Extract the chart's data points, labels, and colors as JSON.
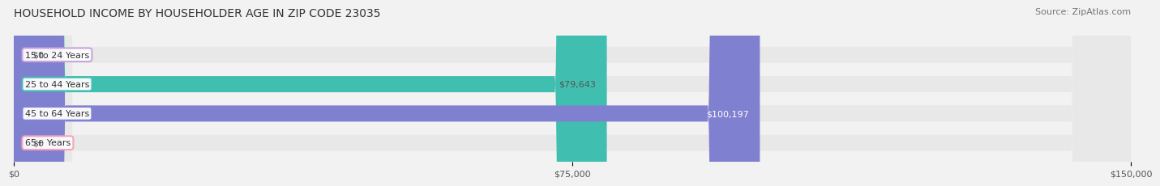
{
  "title": "HOUSEHOLD INCOME BY HOUSEHOLDER AGE IN ZIP CODE 23035",
  "source": "Source: ZipAtlas.com",
  "categories": [
    "15 to 24 Years",
    "25 to 44 Years",
    "45 to 64 Years",
    "65+ Years"
  ],
  "values": [
    0,
    79643,
    100197,
    0
  ],
  "bar_colors": [
    "#c9a0dc",
    "#40bfb0",
    "#8080d0",
    "#f9a0b8"
  ],
  "bar_label_colors": [
    "#555555",
    "#555555",
    "#ffffff",
    "#555555"
  ],
  "xlim": [
    0,
    150000
  ],
  "xticks": [
    0,
    75000,
    150000
  ],
  "xtick_labels": [
    "$0",
    "$75,000",
    "$150,000"
  ],
  "background_color": "#f2f2f2",
  "bar_bg_color": "#e8e8e8",
  "bar_height": 0.55,
  "figsize": [
    14.06,
    2.33
  ],
  "dpi": 100
}
